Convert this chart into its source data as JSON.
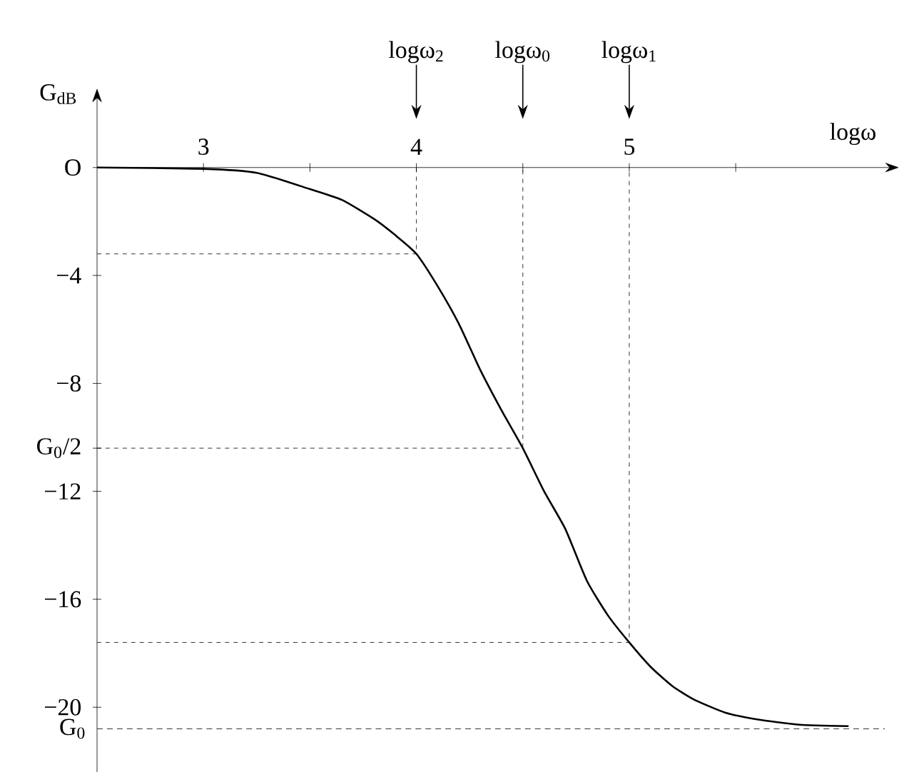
{
  "chart_data": {
    "type": "line",
    "xlabel": "logω",
    "ylabel": "G$_{dB}$",
    "xlim": [
      2.5,
      6.2
    ],
    "ylim": [
      -22.4,
      2.4
    ],
    "xticks": [
      3,
      {
        "value": 3.5,
        "label": null
      },
      4,
      {
        "value": 4.5,
        "label": null
      },
      5,
      {
        "value": 5.5,
        "label": null
      }
    ],
    "yticks": [
      {
        "value": 0,
        "label": "O"
      },
      {
        "value": -4,
        "label": "−4"
      },
      {
        "value": -8,
        "label": "−8"
      },
      {
        "value": -10.4,
        "label": "G$_{0}$/2"
      },
      {
        "value": -12,
        "label": "−12"
      },
      {
        "value": -16,
        "label": "−16"
      },
      {
        "value": -20,
        "label": "−20"
      }
    ],
    "series": [
      {
        "color": "#000000",
        "x": [
          2.5,
          3,
          3.25,
          3.5,
          3.65,
          3.8,
          3.9,
          4,
          4.1,
          4.2,
          4.3,
          4.4,
          4.5,
          4.6,
          4.7,
          4.8,
          4.9,
          5,
          5.1,
          5.2,
          5.3,
          5.45,
          5.6,
          5.8,
          6.03
        ],
        "values": [
          0,
          -0.05,
          -0.2,
          -0.8,
          -1.2,
          -1.9,
          -2.5,
          -3.2,
          -4.4,
          -5.8,
          -7.5,
          -9.0,
          -10.4,
          -12.0,
          -13.4,
          -15.3,
          -16.6,
          -17.6,
          -18.5,
          -19.2,
          -19.7,
          -20.2,
          -20.45,
          -20.65,
          -20.7
        ]
      },
      {
        "color": "#000000",
        "line_style": "dashed",
        "x": [
          2.5,
          4,
          4
        ],
        "values": [
          -3.2,
          -3.2,
          0
        ]
      },
      {
        "color": "#000000",
        "line_style": "dashed",
        "x": [
          2.5,
          4.5,
          4.5
        ],
        "values": [
          -10.4,
          -10.4,
          0
        ]
      },
      {
        "color": "#000000",
        "line_style": "dashed",
        "x": [
          2.5,
          5,
          5
        ],
        "values": [
          -17.6,
          -17.6,
          0
        ]
      }
    ],
    "annotations": [
      "logω$_{2}$",
      "logω$_{0}$",
      "logω$_{1}$"
    ],
    "ref_lines": [
      {
        "axis": "y",
        "value": -20.8,
        "label": "G$_{0}$",
        "line_style": "dashed"
      }
    ],
    "grid": false
  }
}
